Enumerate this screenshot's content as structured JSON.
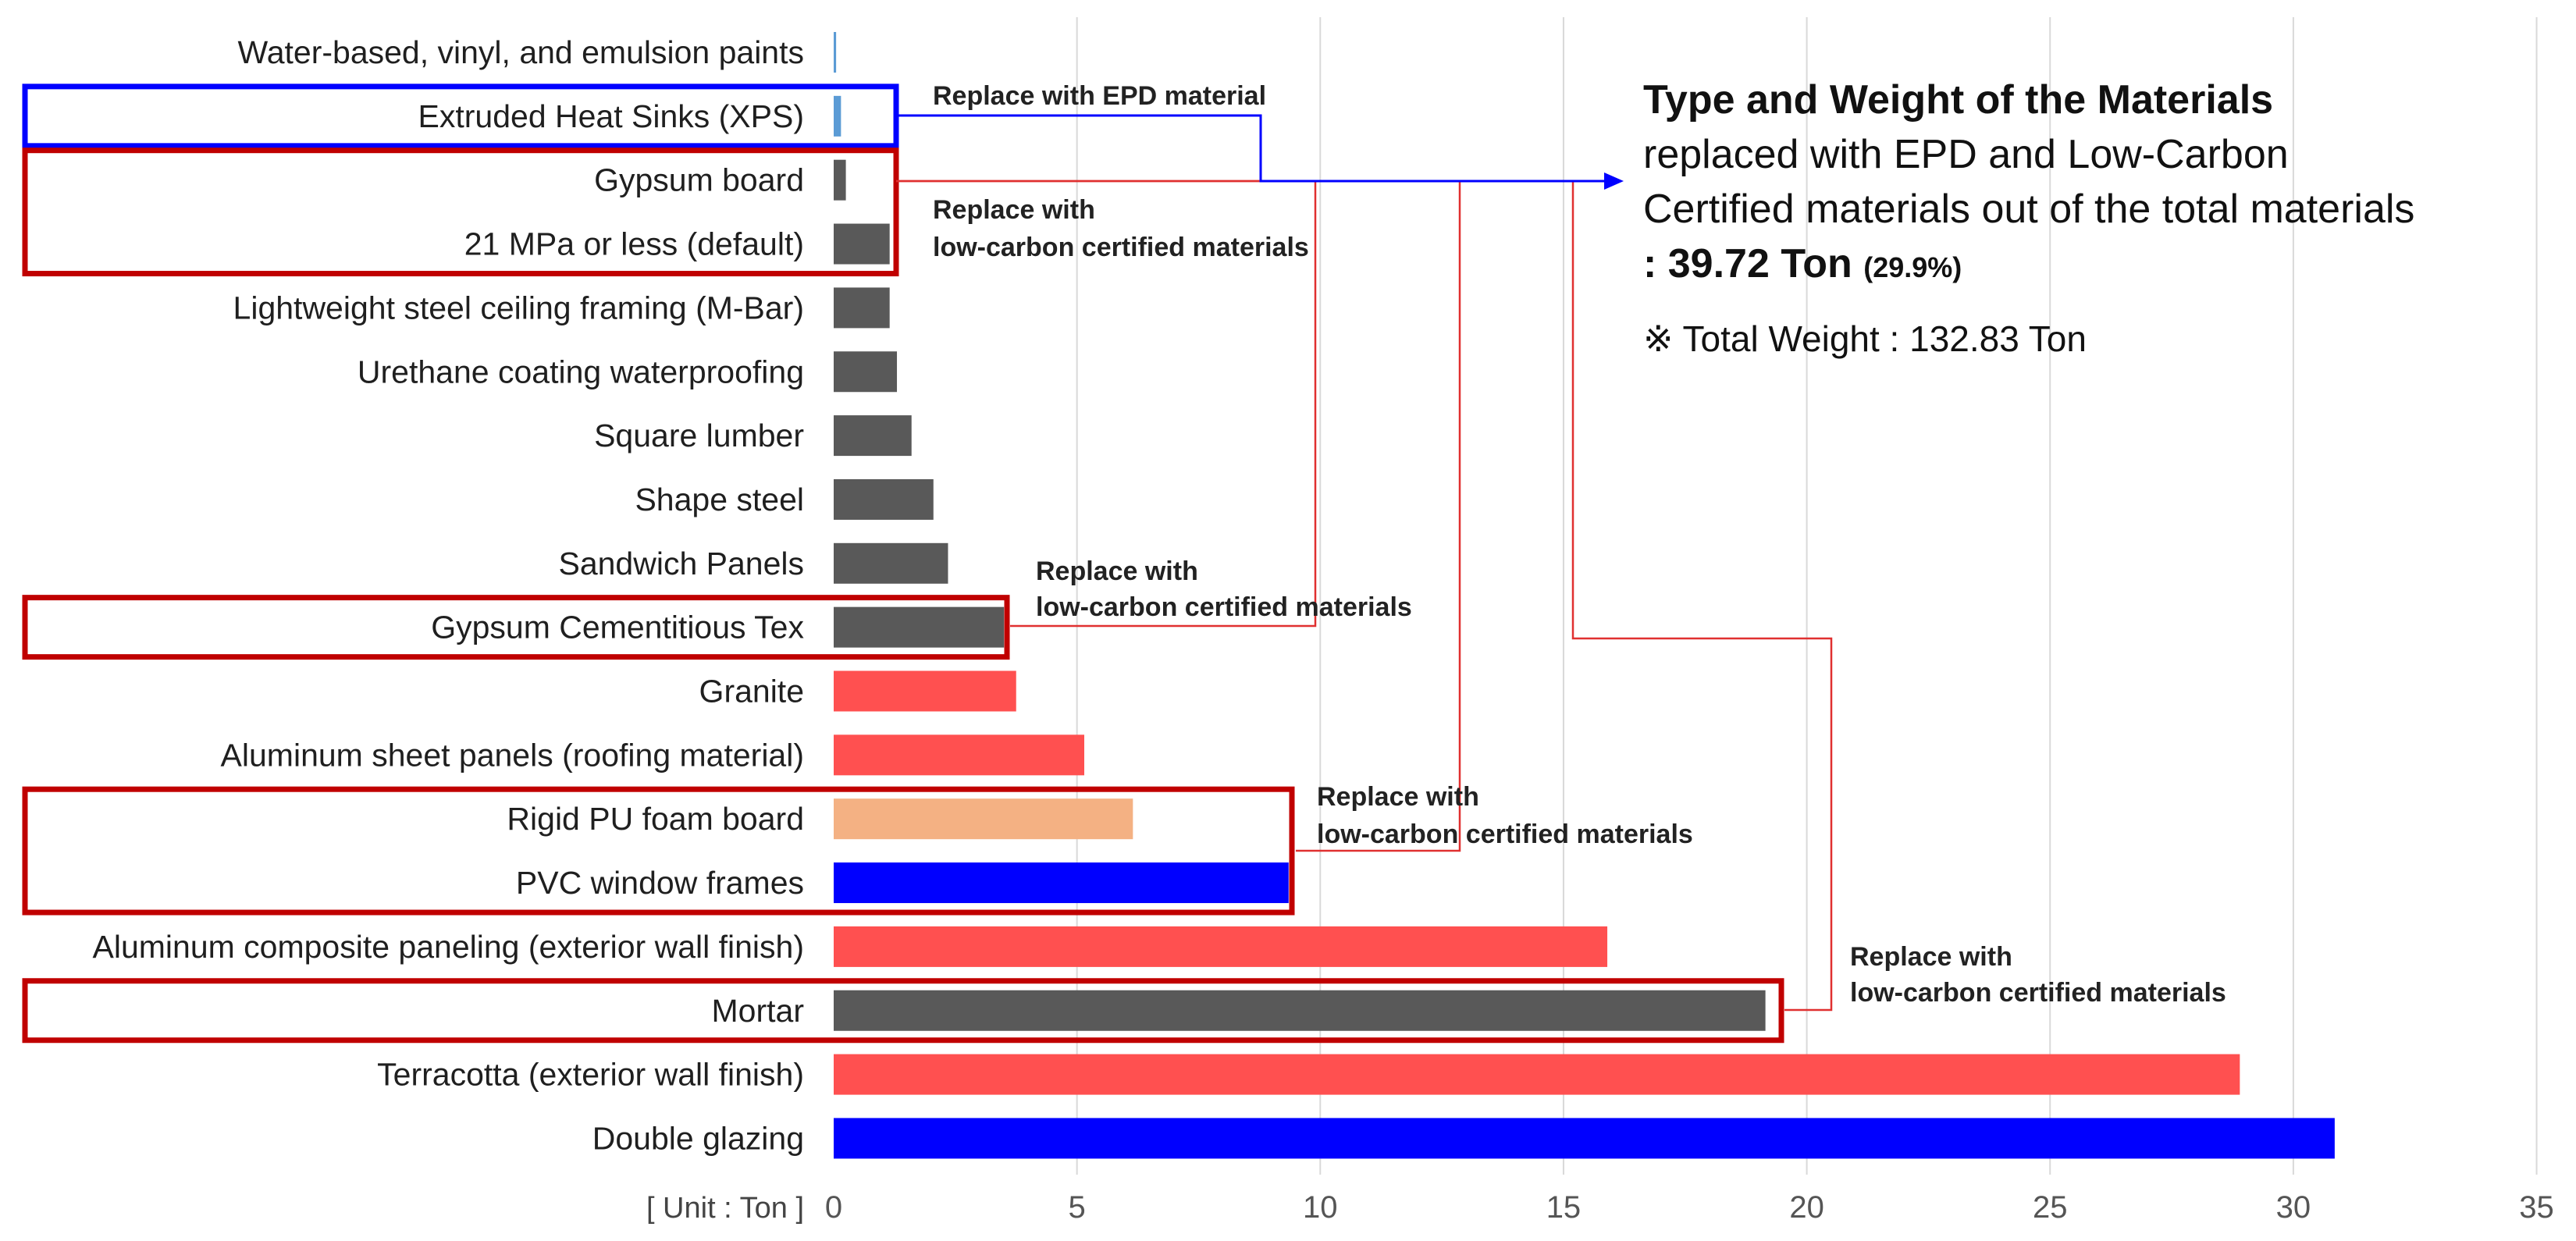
{
  "chart_data": {
    "type": "bar",
    "orientation": "horizontal",
    "categories": [
      "Water-based, vinyl, and emulsion paints",
      "Extruded Heat Sinks (XPS)",
      "Gypsum board",
      "21 MPa or less (default)",
      "Lightweight steel ceiling framing (M-Bar)",
      "Urethane coating waterproofing",
      "Square lumber",
      "Shape steel",
      "Sandwich Panels",
      "Gypsum Cementitious Tex",
      "Granite",
      "Aluminum sheet panels (roofing material)",
      "Rigid PU foam board",
      "PVC window frames",
      "Aluminum composite paneling (exterior wall finish)",
      "Mortar",
      "Terracotta (exterior wall finish)",
      "Double glazing"
    ],
    "values": [
      0.05,
      0.15,
      0.25,
      1.15,
      1.15,
      1.3,
      1.6,
      2.05,
      2.35,
      3.5,
      3.75,
      5.15,
      6.15,
      9.35,
      15.9,
      19.15,
      28.9,
      30.85
    ],
    "bar_colors": [
      "#5b9bd5",
      "#5b9bd5",
      "#595959",
      "#595959",
      "#595959",
      "#595959",
      "#595959",
      "#595959",
      "#595959",
      "#595959",
      "#ff5050",
      "#ff5050",
      "#f4b183",
      "#0000ff",
      "#ff5050",
      "#595959",
      "#ff5050",
      "#0000ff"
    ],
    "xlim": [
      0,
      35
    ],
    "xticks": [
      0,
      5,
      10,
      15,
      20,
      25,
      30,
      35
    ],
    "grid": true,
    "unit_label": "[ Unit : Ton ]",
    "title_bold": "Type and Weight of the Materials",
    "title_line2": "replaced with EPD and Low-Carbon",
    "title_line3": "Certified materials out of the total materials",
    "total_value": ": 39.72 Ton",
    "total_pct": "(29.9%)",
    "total_weight": "※ Total Weight : 132.83 Ton",
    "annotations": {
      "epd": "Replace with EPD material",
      "group1_line1": "Replace with",
      "group1_line2": "low-carbon certified  materials",
      "group2_line1": "Replace with",
      "group2_line2": "low-carbon certified  materials",
      "group3_line1": "Replace with",
      "group3_line2": "low-carbon certified  materials",
      "group4_line1": "Replace with",
      "group4_line2": "low-carbon certified  materials"
    },
    "colors": {
      "epd_box": "#0000ff",
      "lowcarbon_box": "#c00000",
      "connector_red": "#e03030",
      "grid": "#d9d9d9"
    }
  }
}
